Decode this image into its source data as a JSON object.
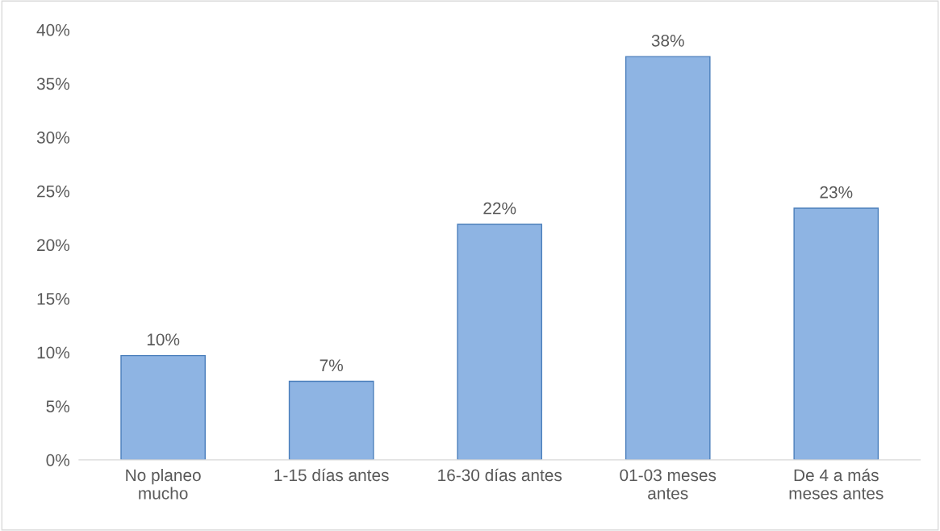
{
  "chart_data": {
    "type": "bar",
    "categories": [
      "No planeo\nmucho",
      "1-15 días antes",
      "16-30 días antes",
      "01-03 meses\nantes",
      "De 4 a más\nmeses antes"
    ],
    "values": [
      9.7,
      7.3,
      21.9,
      37.5,
      23.4
    ],
    "value_labels": [
      "10%",
      "7%",
      "22%",
      "38%",
      "23%"
    ],
    "color": "#8eb4e3",
    "ylim": [
      0,
      40
    ],
    "yticks": [
      {
        "value": 0,
        "label": "0%"
      },
      {
        "value": 5,
        "label": "5%"
      },
      {
        "value": 10,
        "label": "10%"
      },
      {
        "value": 15,
        "label": "15%"
      },
      {
        "value": 20,
        "label": "20%"
      },
      {
        "value": 25,
        "label": "25%"
      },
      {
        "value": 30,
        "label": "30%"
      },
      {
        "value": 35,
        "label": "35%"
      },
      {
        "value": 40,
        "label": "40%"
      }
    ],
    "grid": false,
    "legend": false
  }
}
